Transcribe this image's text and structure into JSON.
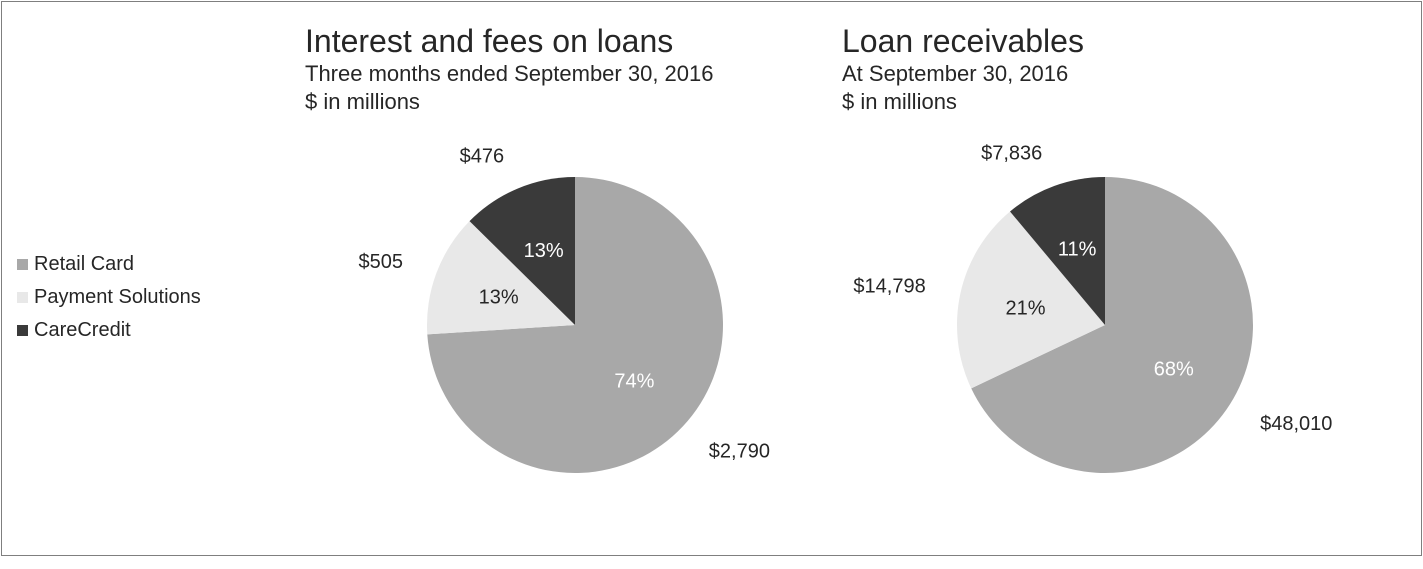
{
  "frame": {
    "background": "#ffffff",
    "border_color": "#7f7f7f"
  },
  "legend": {
    "position": "left",
    "items": [
      {
        "label": "Retail Card",
        "color": "#a8a8a8"
      },
      {
        "label": "Payment Solutions",
        "color": "#e8e8e8"
      },
      {
        "label": "CareCredit",
        "color": "#3a3a3a"
      }
    ]
  },
  "chart_data": [
    {
      "type": "pie",
      "title": "Interest and fees on loans",
      "subtitle": "Three months ended September 30, 2016",
      "units_label": "$ in millions",
      "categories": [
        "Retail Card",
        "Payment Solutions",
        "CareCredit"
      ],
      "values": [
        2790,
        505,
        476
      ],
      "percent_labels": [
        "74%",
        "13%",
        "13%"
      ],
      "value_labels": [
        "$2,790",
        "$505",
        "$476"
      ],
      "colors": [
        "#a8a8a8",
        "#e8e8e8",
        "#3a3a3a"
      ],
      "percent_label_colors": [
        "#ffffff",
        "#262626",
        "#ffffff"
      ],
      "start_angle_deg": 0,
      "direction": "clockwise",
      "legend_position": "left"
    },
    {
      "type": "pie",
      "title": "Loan receivables",
      "subtitle": "At September 30, 2016",
      "units_label": "$ in millions",
      "categories": [
        "Retail Card",
        "Payment Solutions",
        "CareCredit"
      ],
      "values": [
        48010,
        14798,
        7836
      ],
      "percent_labels": [
        "68%",
        "21%",
        "11%"
      ],
      "value_labels": [
        "$48,010",
        "$14,798",
        "$7,836"
      ],
      "colors": [
        "#a8a8a8",
        "#e8e8e8",
        "#3a3a3a"
      ],
      "percent_label_colors": [
        "#ffffff",
        "#262626",
        "#ffffff"
      ],
      "start_angle_deg": 0,
      "direction": "clockwise",
      "legend_position": "left"
    }
  ]
}
